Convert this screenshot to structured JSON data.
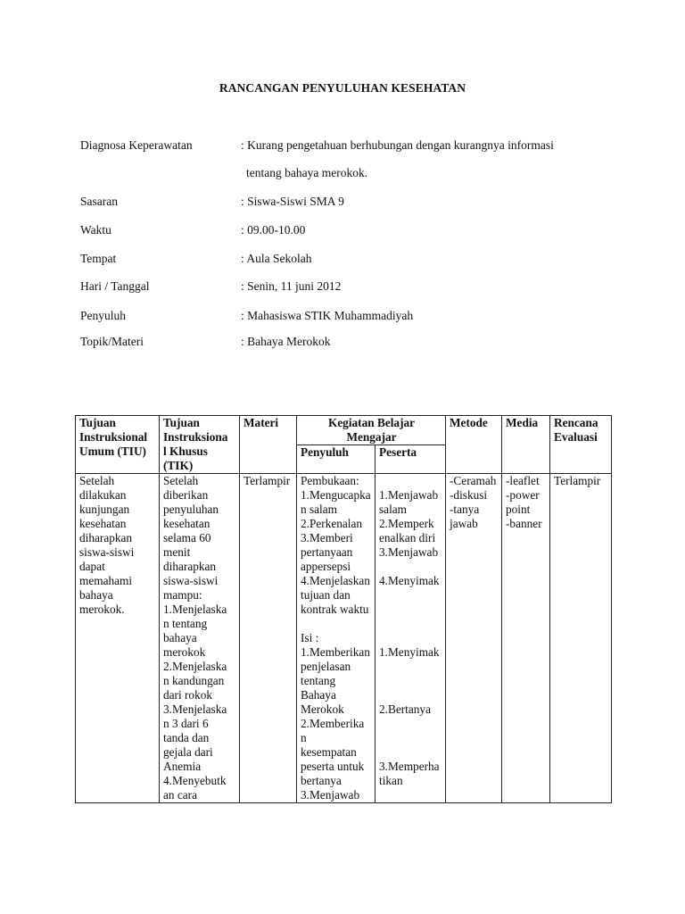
{
  "title": "RANCANGAN PENYULUHAN KESEHATAN",
  "info": [
    {
      "label": "Diagnosa Keperawatan",
      "value": ": Kurang pengetahuan berhubungan dengan kurangnya informasi",
      "continuation": "tentang bahaya merokok."
    },
    {
      "label": "Sasaran",
      "value": ": Siswa-Siswi SMA 9"
    },
    {
      "label": "Waktu",
      "value": ": 09.00-10.00"
    },
    {
      "label": "Tempat",
      "value": ": Aula Sekolah"
    },
    {
      "label": "Hari / Tanggal",
      "value": ": Senin, 11 juni 2012"
    },
    {
      "label": "Penyuluh",
      "value": ": Mahasiswa STIK Muhammadiyah"
    },
    {
      "label": "Topik/Materi",
      "value": ": Bahaya Merokok"
    }
  ],
  "table": {
    "headers": {
      "tiu": "Tujuan\nInstruksional\nUmum (TIU)",
      "tik": "Tujuan\nInstruksiona\nl Khusus\n(TIK)",
      "materi": "Materi",
      "kegiatan": "Kegiatan Belajar\nMengajar",
      "penyuluh": "Penyuluh",
      "peserta": "Peserta",
      "metode": "Metode",
      "media": "Media",
      "evaluasi": "Rencana\nEvaluasi"
    },
    "row": {
      "tiu": "Setelah\ndilakukan\nkunjungan\nkesehatan\ndiharapkan\nsiswa-siswi\ndapat\nmemahami\nbahaya\nmerokok.",
      "tik": "Setelah\ndiberikan\npenyuluhan\nkesehatan\nselama 60\nmenit\ndiharapkan\nsiswa-siswi\nmampu:\n1.Menjelaska\nn tentang\nbahaya\nmerokok\n2.Menjelaska\nn kandungan\ndari rokok\n3.Menjelaska\nn 3 dari 6\ntanda dan\ngejala dari\nAnemia\n4.Menyebutk\nan cara",
      "materi": "Terlampir",
      "penyuluh": "Pembukaan:\n1.Mengucapka\nn salam\n2.Perkenalan\n3.Memberi\npertanyaan\nappersepsi\n4.Menjelaskan\ntujuan dan\nkontrak waktu\n\nIsi :\n1.Memberikan\npenjelasan\ntentang\nBahaya\nMerokok\n2.Memberika\nn\nkesempatan\npeserta untuk\nbertanya\n3.Menjawab",
      "peserta": "\n1.Menjawab\nsalam\n2.Memperk\nenalkan diri\n3.Menjawab\n\n4.Menyimak\n\n\n\n\n1.Menyimak\n\n\n\n2.Bertanya\n\n\n\n3.Memperha\ntikan",
      "metode": "-Ceramah\n-diskusi\n-tanya\njawab",
      "media": "-leaflet\n-power\npoint\n-banner",
      "evaluasi": "Terlampir"
    }
  }
}
